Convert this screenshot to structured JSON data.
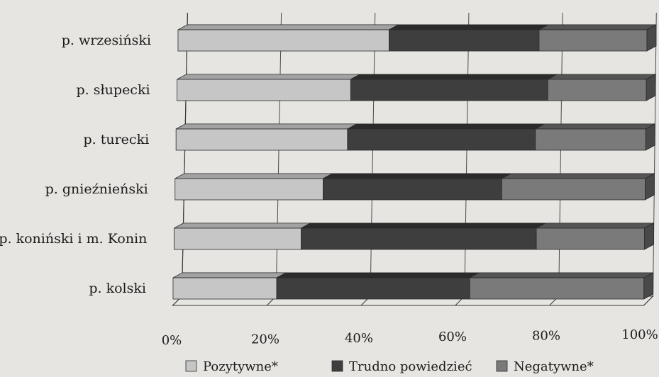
{
  "chart_data": {
    "type": "bar",
    "orientation": "horizontal",
    "stacked": true,
    "percent_stacked": true,
    "three_d": true,
    "categories": [
      "p. wrzesiński",
      "p. słupecki",
      "p. turecki",
      "p. gnieźnieński",
      "p. koniński i m. Konin",
      "p. kolski"
    ],
    "series": [
      {
        "name": "Pozytywne*",
        "values": [
          45,
          37,
          36.5,
          31.5,
          27,
          22
        ],
        "color": "#c6c6c6"
      },
      {
        "name": "Trudno powiedzieć",
        "values": [
          32,
          42,
          40,
          38,
          50,
          41
        ],
        "color": "#3e3e3e"
      },
      {
        "name": "Negatywne*",
        "values": [
          23,
          21,
          23.5,
          30.5,
          23,
          37
        ],
        "color": "#7a7a7a"
      }
    ],
    "x_ticks": [
      "0%",
      "20%",
      "40%",
      "60%",
      "80%",
      "100%"
    ],
    "xlim": [
      0,
      100
    ],
    "grid": true,
    "legend_position": "bottom"
  }
}
